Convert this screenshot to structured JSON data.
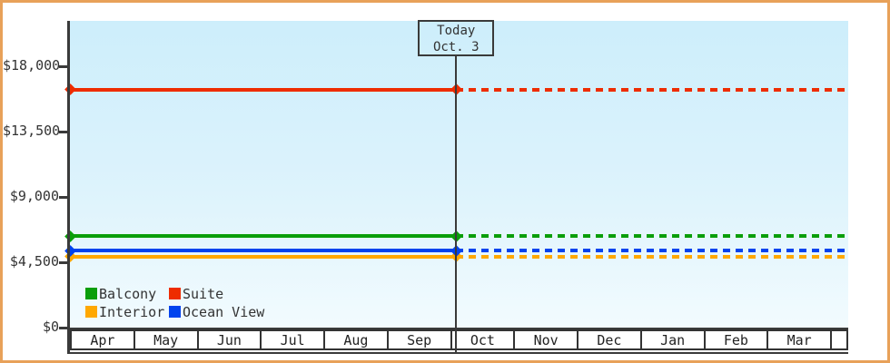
{
  "window": {
    "frame_border_color": "#e8a159",
    "plot_bg_top": "#cdeefb",
    "plot_bg_bottom": "#f2fbfe",
    "axis_color": "#3a3a3a",
    "text_color": "#333333"
  },
  "chart_data": {
    "type": "line",
    "title": "",
    "xlabel": "",
    "ylabel": "",
    "x_categories": [
      "Apr",
      "May",
      "Jun",
      "Jul",
      "Aug",
      "Sep",
      "Oct",
      "Nov",
      "Dec",
      "Jan",
      "Feb",
      "Mar"
    ],
    "ylim": [
      0,
      21125
    ],
    "yticks": [
      {
        "value": 0,
        "label": "$0"
      },
      {
        "value": 4500,
        "label": "$4,500"
      },
      {
        "value": 9000,
        "label": "$9,000"
      },
      {
        "value": 13500,
        "label": "$13,500"
      },
      {
        "value": 18000,
        "label": "$18,000"
      }
    ],
    "grid": false,
    "legend_position": "inside-bottom-left",
    "series": [
      {
        "name": "Balcony",
        "color": "#0a9e0a",
        "value_usd": 6300,
        "constant_across_months": true
      },
      {
        "name": "Suite",
        "color": "#ee2c00",
        "value_usd": 16400,
        "constant_across_months": true
      },
      {
        "name": "Interior",
        "color": "#ffa800",
        "value_usd": 4900,
        "constant_across_months": true
      },
      {
        "name": "Ocean View",
        "color": "#0043ee",
        "value_usd": 5300,
        "constant_across_months": true
      }
    ],
    "today": {
      "label": "Today",
      "date_label": "Oct. 3",
      "month": "Oct",
      "day": 3,
      "style_note": "lines solid before today, dashed after; diamond markers at series start and at today"
    }
  }
}
